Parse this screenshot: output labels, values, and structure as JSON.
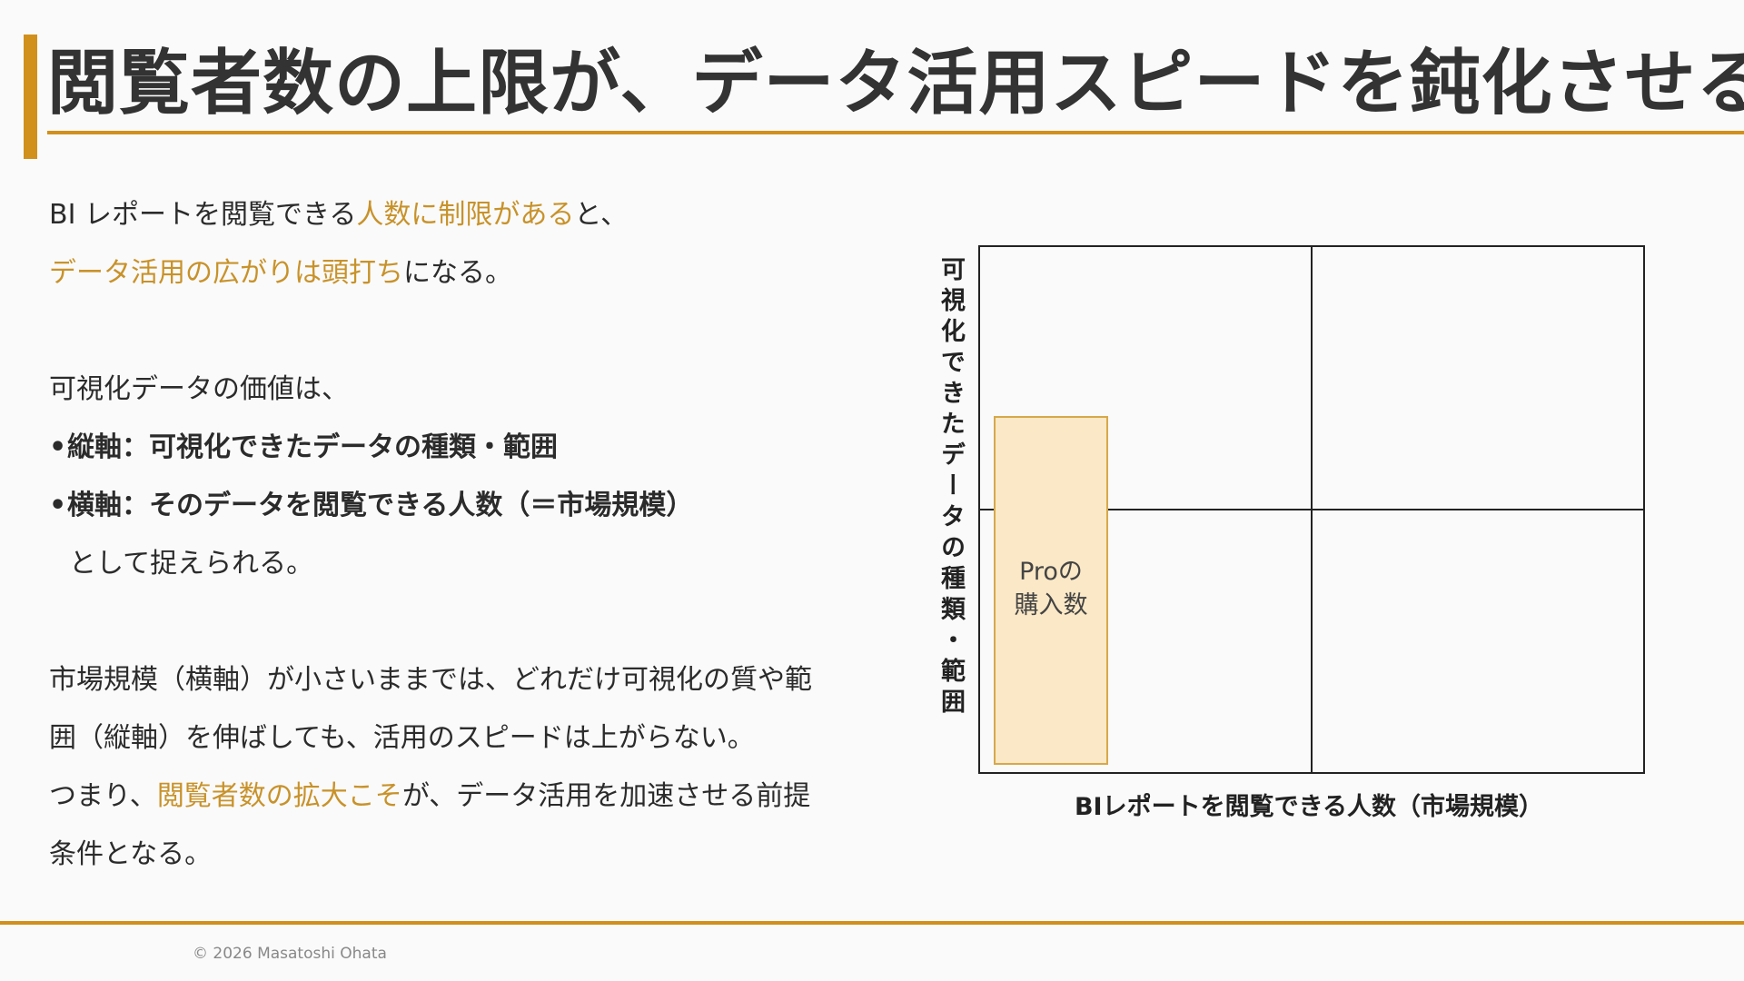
{
  "title": "閲覧者数の上限が、データ活用スピードを鈍化させる",
  "body": {
    "p1_a": "BI レポートを閲覧できる",
    "p1_hl": "人数に制限がある",
    "p1_b": "と、",
    "p2_hl": "データ活用の広がりは頭打ち",
    "p2_b": "になる。",
    "p3": "可視化データの価値は、",
    "bullet1": "縦軸：可視化できたデータの種類・範囲",
    "bullet2": "横軸：そのデータを閲覧できる人数（＝市場規模）",
    "p4": "として捉えられる。",
    "p5_line1": "市場規模（横軸）が小さいままでは、どれだけ可視化の質や範",
    "p5_line2": "囲（縦軸）を伸ばしても、活用のスピードは上がらない。",
    "p6_a": "つまり、",
    "p6_hl": "閲覧者数の拡大こそ",
    "p6_b": "が、データ活用を加速させる前提",
    "p6_line2": "条件となる。"
  },
  "chart": {
    "ylabel": "可視化できたデータの種類・範囲",
    "xlabel": "BIレポートを閲覧できる人数（市場規模）",
    "box_label_line1": "Proの",
    "box_label_line2": "購入数",
    "box_fill": "#fbe8c6",
    "box_stroke": "#d7a84a"
  },
  "footer": "© 2026 Masatoshi Ohata"
}
